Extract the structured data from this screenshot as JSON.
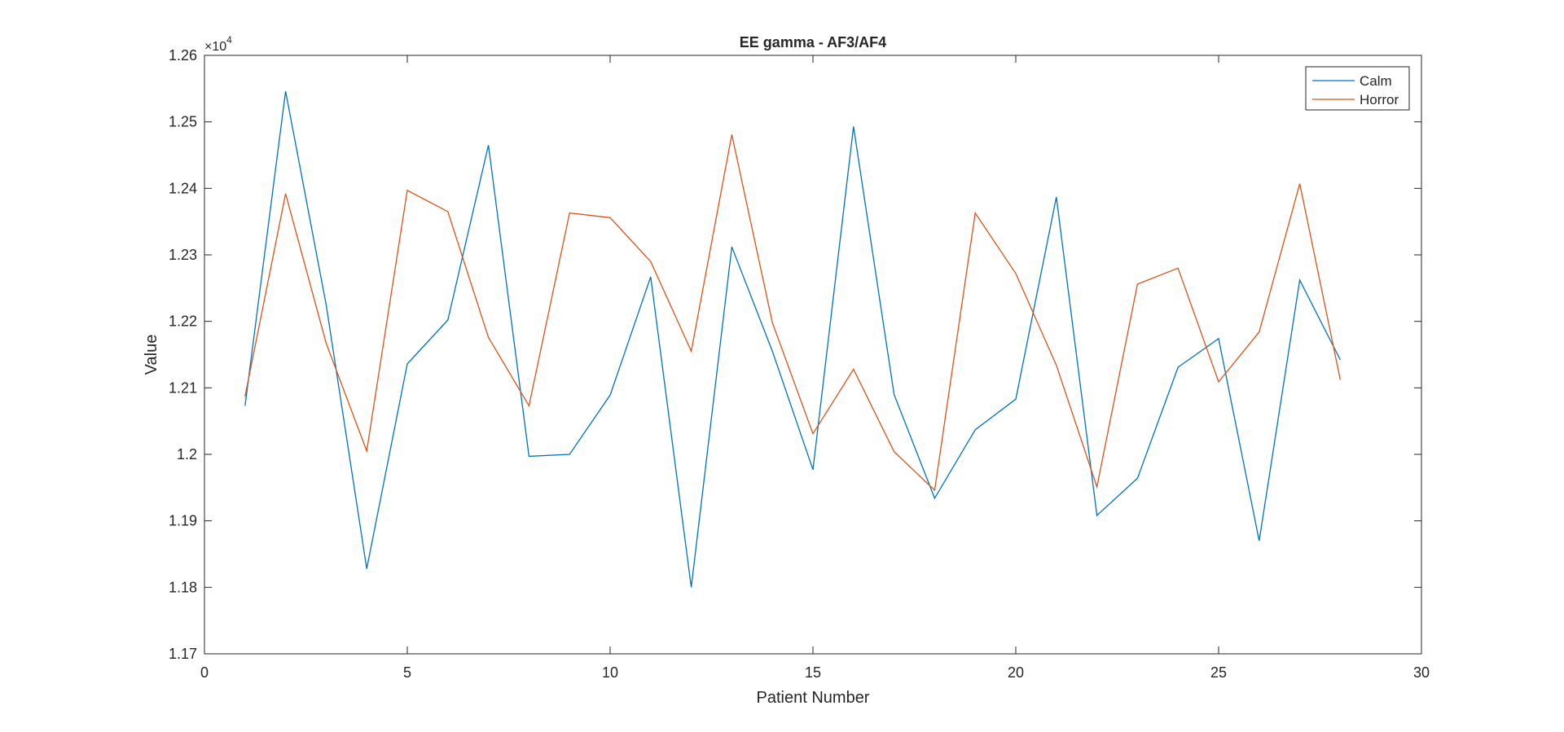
{
  "chart_data": {
    "type": "line",
    "title": "EE gamma - AF3/AF4",
    "xlabel": "Patient Number",
    "ylabel": "Value",
    "y_exponent_base": "×10",
    "y_exponent_power": "4",
    "xlim": [
      0,
      30
    ],
    "ylim": [
      1.17,
      1.26
    ],
    "x_ticks": [
      0,
      5,
      10,
      15,
      20,
      25,
      30
    ],
    "y_ticks": [
      1.17,
      1.18,
      1.19,
      1.2,
      1.21,
      1.22,
      1.23,
      1.24,
      1.25,
      1.26
    ],
    "x_tick_labels": [
      "0",
      "5",
      "10",
      "15",
      "20",
      "25",
      "30"
    ],
    "y_tick_labels": [
      "1.17",
      "1.18",
      "1.19",
      "1.2",
      "1.21",
      "1.22",
      "1.23",
      "1.24",
      "1.25",
      "1.26"
    ],
    "grid": false,
    "legend_position": "top-right",
    "x": [
      1,
      2,
      3,
      4,
      5,
      6,
      7,
      8,
      9,
      10,
      11,
      12,
      13,
      14,
      15,
      16,
      17,
      18,
      19,
      20,
      21,
      22,
      23,
      24,
      25,
      26,
      27,
      28
    ],
    "series": [
      {
        "name": "Calm",
        "color": "#0072BD",
        "values": [
          1.2073,
          1.2546,
          1.2225,
          1.1828,
          1.2136,
          1.2202,
          1.2465,
          1.1997,
          1.2,
          1.2089,
          1.2267,
          1.18,
          1.2312,
          1.2155,
          1.1977,
          1.2493,
          1.209,
          1.1934,
          1.2037,
          1.2083,
          1.2387,
          1.1908,
          1.1964,
          1.2131,
          1.2174,
          1.187,
          1.2262,
          1.2142
        ]
      },
      {
        "name": "Horror",
        "color": "#D95319",
        "values": [
          1.2087,
          1.2392,
          1.2167,
          1.2005,
          1.2397,
          1.2365,
          1.2176,
          1.2073,
          1.2363,
          1.2356,
          1.229,
          1.2155,
          1.2481,
          1.2198,
          1.2031,
          1.2128,
          1.2004,
          1.1946,
          1.2363,
          1.2272,
          1.2134,
          1.1951,
          1.2256,
          1.228,
          1.2109,
          1.2184,
          1.2407,
          1.2112
        ]
      }
    ]
  }
}
